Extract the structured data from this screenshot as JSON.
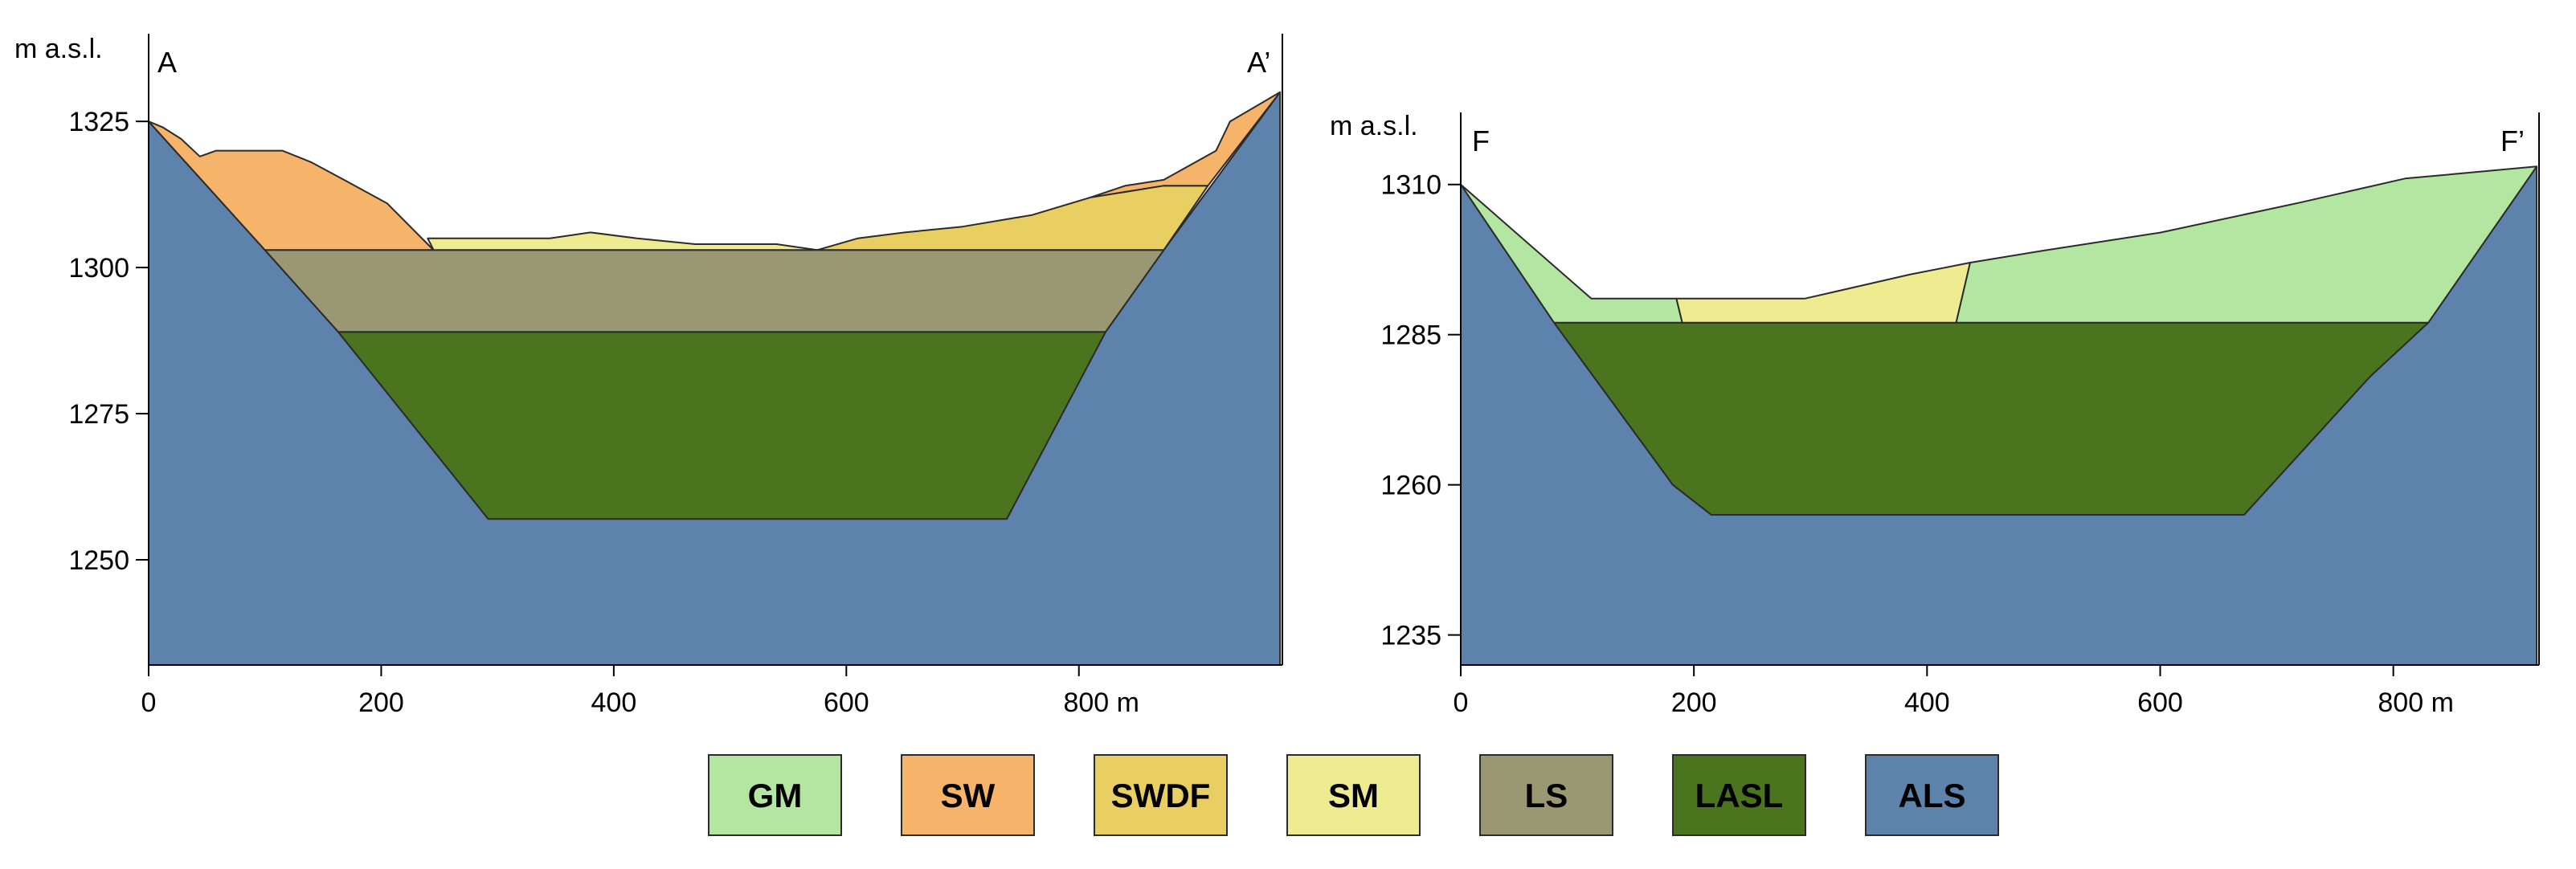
{
  "units": [
    {
      "code": "GM",
      "color": "#b3e6a1"
    },
    {
      "code": "SW",
      "color": "#f5b469"
    },
    {
      "code": "SWDF",
      "color": "#e9ce62"
    },
    {
      "code": "SM",
      "color": "#eeeb90"
    },
    {
      "code": "LS",
      "color": "#999873"
    },
    {
      "code": "LASL",
      "color": "#4b741e"
    },
    {
      "code": "ALS",
      "color": "#5d82ab"
    }
  ],
  "chart_data": [
    {
      "type": "cross-section",
      "id": "section-a",
      "start_label": "A",
      "end_label": "A’",
      "ylabel": "m a.s.l.",
      "xunit": "m",
      "xlim": [
        0,
        975
      ],
      "ylim": [
        1232,
        1340
      ],
      "xticks": [
        0,
        200,
        400,
        600,
        800
      ],
      "yticks": [
        1250,
        1275,
        1300,
        1325
      ],
      "layers": [
        {
          "unit": "ALS",
          "points": [
            [
              0,
              1232
            ],
            [
              0,
              1325
            ],
            [
              100,
              1303
            ],
            [
              163,
              1289
            ],
            [
              292,
              1257
            ],
            [
              738,
              1257
            ],
            [
              823,
              1289
            ],
            [
              873,
              1303
            ],
            [
              973,
              1330
            ],
            [
              973,
              1232
            ]
          ]
        },
        {
          "unit": "LASL",
          "points": [
            [
              163,
              1289
            ],
            [
              823,
              1289
            ],
            [
              738,
              1257
            ],
            [
              292,
              1257
            ]
          ]
        },
        {
          "unit": "LS",
          "points": [
            [
              100,
              1303
            ],
            [
              873,
              1303
            ],
            [
              823,
              1289
            ],
            [
              163,
              1289
            ]
          ]
        },
        {
          "unit": "SW",
          "points": [
            [
              0,
              1325
            ],
            [
              12,
              1324
            ],
            [
              28,
              1322
            ],
            [
              44,
              1319
            ],
            [
              58,
              1320
            ],
            [
              115,
              1320
            ],
            [
              140,
              1318
            ],
            [
              168,
              1315
            ],
            [
              205,
              1311
            ],
            [
              225,
              1307
            ],
            [
              240,
              1304
            ],
            [
              245,
              1303
            ],
            [
              100,
              1303
            ]
          ]
        },
        {
          "unit": "SM",
          "points": [
            [
              240,
              1305
            ],
            [
              280,
              1305
            ],
            [
              320,
              1305
            ],
            [
              345,
              1305
            ],
            [
              380,
              1306
            ],
            [
              420,
              1305
            ],
            [
              470,
              1304
            ],
            [
              500,
              1304
            ],
            [
              540,
              1304
            ],
            [
              575,
              1303
            ],
            [
              245,
              1303
            ]
          ]
        },
        {
          "unit": "SWDF",
          "points": [
            [
              575,
              1303
            ],
            [
              610,
              1305
            ],
            [
              650,
              1306
            ],
            [
              700,
              1307
            ],
            [
              760,
              1309
            ],
            [
              810,
              1312
            ],
            [
              873,
              1314
            ],
            [
              911,
              1314
            ],
            [
              873,
              1303
            ]
          ]
        },
        {
          "unit": "SW",
          "points": [
            [
              810,
              1312
            ],
            [
              840,
              1314
            ],
            [
              873,
              1315
            ],
            [
              918,
              1320
            ],
            [
              930,
              1325
            ],
            [
              973,
              1330
            ],
            [
              911,
              1314
            ],
            [
              873,
              1314
            ]
          ]
        }
      ]
    },
    {
      "type": "cross-section",
      "id": "section-f",
      "start_label": "F",
      "end_label": "F’",
      "ylabel": "m a.s.l.",
      "xunit": "m",
      "xlim": [
        0,
        925
      ],
      "ylim": [
        1230,
        1322
      ],
      "xticks": [
        0,
        200,
        400,
        600,
        800
      ],
      "yticks": [
        1235,
        1260,
        1285,
        1310
      ],
      "layers": [
        {
          "unit": "ALS",
          "points": [
            [
              0,
              1230
            ],
            [
              0,
              1310
            ],
            [
              80,
              1287
            ],
            [
              182,
              1260
            ],
            [
              215,
              1255
            ],
            [
              672,
              1255
            ],
            [
              780,
              1278
            ],
            [
              830,
              1287
            ],
            [
              923,
              1313
            ],
            [
              923,
              1230
            ]
          ]
        },
        {
          "unit": "LASL",
          "points": [
            [
              80,
              1287
            ],
            [
              830,
              1287
            ],
            [
              780,
              1278
            ],
            [
              672,
              1255
            ],
            [
              215,
              1255
            ],
            [
              182,
              1260
            ]
          ]
        },
        {
          "unit": "GM",
          "points": [
            [
              0,
              1310
            ],
            [
              112,
              1291
            ],
            [
              185,
              1291
            ],
            [
              190,
              1287
            ],
            [
              80,
              1287
            ]
          ]
        },
        {
          "unit": "SM",
          "points": [
            [
              185,
              1291
            ],
            [
              295,
              1291
            ],
            [
              340,
              1293
            ],
            [
              385,
              1295
            ],
            [
              437,
              1297
            ],
            [
              425,
              1287
            ],
            [
              190,
              1287
            ]
          ]
        },
        {
          "unit": "GM",
          "points": [
            [
              437,
              1297
            ],
            [
              500,
              1299
            ],
            [
              600,
              1302
            ],
            [
              720,
              1307
            ],
            [
              810,
              1311
            ],
            [
              923,
              1313
            ],
            [
              830,
              1287
            ],
            [
              425,
              1287
            ]
          ]
        }
      ]
    }
  ]
}
